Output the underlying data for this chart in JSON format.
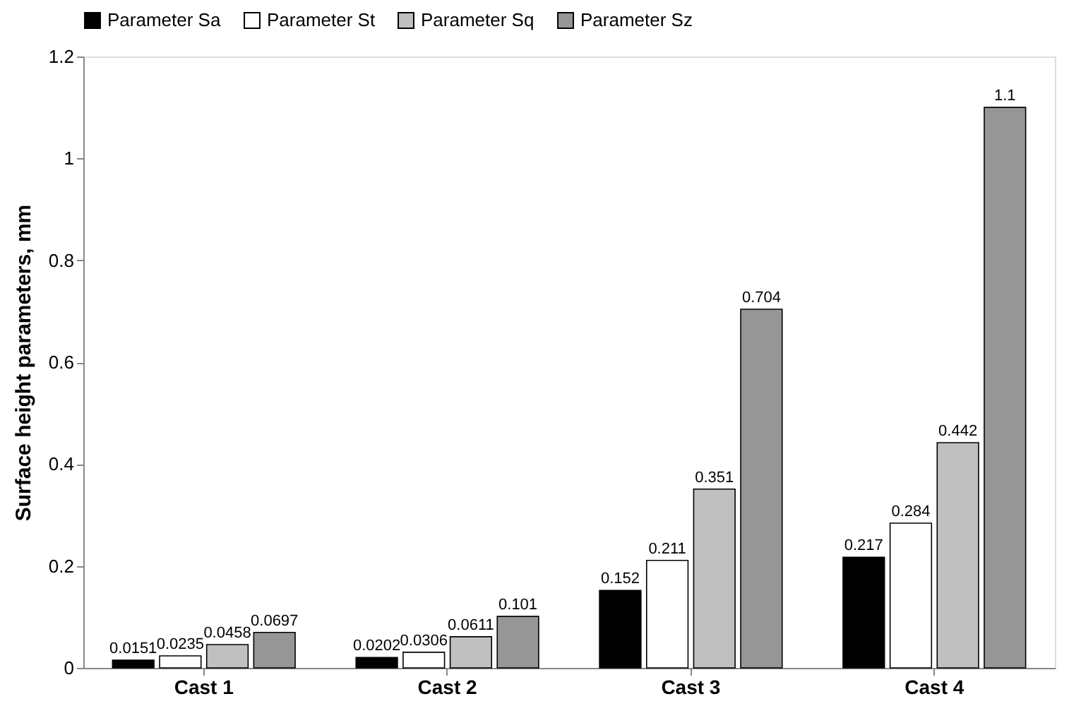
{
  "chart_data": {
    "type": "bar",
    "ylabel": "Surface height parameters, mm",
    "categories": [
      "Cast 1",
      "Cast 2",
      "Cast 3",
      "Cast 4"
    ],
    "series": [
      {
        "name": "Parameter Sa",
        "color": "#000000",
        "values": [
          0.0151,
          0.0202,
          0.152,
          0.217
        ]
      },
      {
        "name": "Parameter St",
        "color": "#ffffff",
        "values": [
          0.0235,
          0.0306,
          0.211,
          0.284
        ]
      },
      {
        "name": "Parameter Sq",
        "color": "#c0c0c0",
        "values": [
          0.0458,
          0.0611,
          0.351,
          0.442
        ]
      },
      {
        "name": "Parameter Sz",
        "color": "#969696",
        "values": [
          0.0697,
          0.101,
          0.704,
          1.1
        ]
      }
    ],
    "ylim": [
      0,
      1.2
    ],
    "yticks": [
      0,
      0.2,
      0.4,
      0.6,
      0.8,
      1,
      1.2
    ],
    "data_labels": true,
    "legend": "top",
    "grid": false
  }
}
